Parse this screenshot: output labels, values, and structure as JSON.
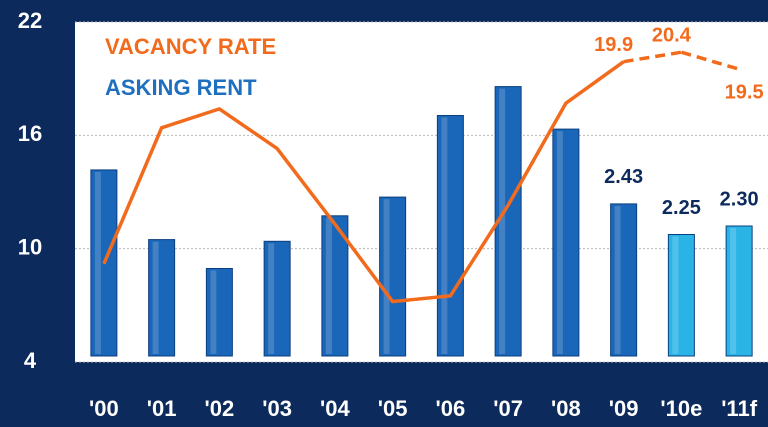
{
  "chart_data": {
    "type": "bar_line",
    "categories": [
      "'00",
      "'01",
      "'02",
      "'03",
      "'04",
      "'05",
      "'06",
      "'07",
      "'08",
      "'09",
      "'10e",
      "'11f"
    ],
    "ylim": [
      4,
      22
    ],
    "yticks": [
      4,
      10,
      16,
      22
    ],
    "y2lim": [
      1.5,
      3.5
    ],
    "grid": true,
    "series": [
      {
        "name": "ASKING RENT",
        "type": "bar",
        "axis": "y2",
        "color": "#1f6fc1",
        "colors": [
          "#1a66b8",
          "#1a66b8",
          "#1a66b8",
          "#1a66b8",
          "#1a66b8",
          "#1a66b8",
          "#1a66b8",
          "#1a66b8",
          "#1a66b8",
          "#1a66b8",
          "#2ab4e6",
          "#2ab4e6"
        ],
        "values": [
          2.63,
          2.22,
          2.05,
          2.21,
          2.36,
          2.47,
          2.95,
          3.12,
          2.87,
          2.43,
          2.25,
          2.3
        ],
        "value_labels": [
          null,
          null,
          null,
          null,
          null,
          null,
          null,
          null,
          null,
          "2.43",
          "2.25",
          "2.30"
        ]
      },
      {
        "name": "VACANCY RATE",
        "type": "line",
        "color": "#f26b1d",
        "values": [
          9.2,
          16.4,
          17.4,
          15.3,
          11.3,
          7.2,
          7.5,
          12.3,
          17.7,
          19.9,
          20.4,
          19.5
        ],
        "labeled_points": [
          9,
          10,
          11
        ],
        "dashed_segments": [
          9,
          10
        ]
      }
    ]
  }
}
